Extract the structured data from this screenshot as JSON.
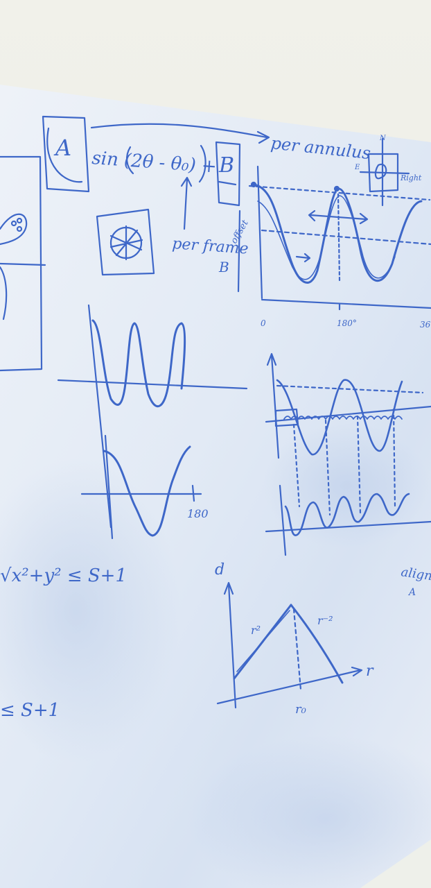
{
  "colors": {
    "ink": "#3e67c8",
    "ink_light": "#6b8ad6",
    "board": "#e7edf6",
    "board_shadow": "#c9d5ea",
    "wall": "#eceee6"
  },
  "board": {
    "formula": {
      "box_a": "A",
      "expression": "sin (2θ - θ₀) +",
      "box_b": "B",
      "arrow_note": "per annulus",
      "per_frame": "per frame",
      "b_label": "B",
      "offset_label": "offset"
    },
    "compass": {
      "label_left": "E",
      "label_right": "Right",
      "label_top": "N"
    },
    "top_wave_axis": {
      "tick_0": "0",
      "tick_180": "180°",
      "tick_360": "36"
    },
    "small_graph": {
      "tick_180": "180"
    },
    "inequalities": {
      "first": "√x²+y² ≤ S+1",
      "second": "≤ S+1"
    },
    "triangle_graph": {
      "y_label": "d",
      "left_label": "r²",
      "right_label": "r⁻²",
      "x_label": "r",
      "peak_label": "r₀"
    },
    "right_note": {
      "line1": "alignm",
      "line2": "A"
    }
  }
}
